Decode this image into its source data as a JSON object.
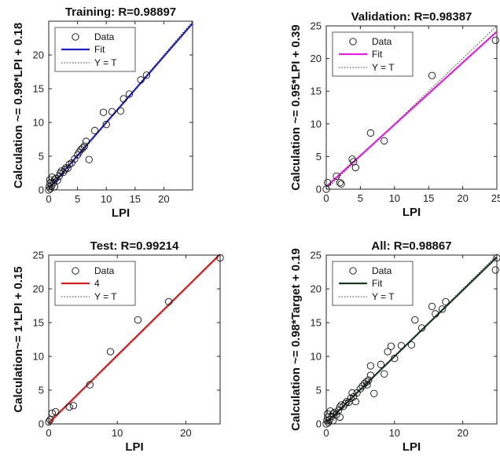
{
  "chart_data": [
    {
      "type": "scatter",
      "title": "Training: R=0.98897",
      "xlabel": "LPI",
      "ylabel": "Calculation ~= 0.98*LPI + 0.18",
      "xlim": [
        0,
        25
      ],
      "ylim": [
        0,
        25
      ],
      "xticks": [
        0,
        5,
        10,
        15,
        20
      ],
      "yticks": [
        0,
        5,
        10,
        15,
        20
      ],
      "grid": false,
      "legend_position": "top-left",
      "fit": {
        "slope": 0.98,
        "intercept": 0.18
      },
      "fit_color": "#1f1fbf",
      "series": [
        {
          "name": "Data",
          "x": [
            0,
            0.1,
            0.2,
            0.3,
            0.5,
            0.8,
            1.0,
            1.2,
            1.5,
            1.8,
            2.0,
            2.2,
            2.5,
            2.8,
            3.0,
            3.3,
            3.6,
            4.0,
            4.5,
            5.0,
            5.3,
            5.6,
            5.9,
            6.2,
            6.5,
            7.0,
            8.0,
            9.5,
            10.0,
            11.0,
            12.5,
            13.0,
            14.0,
            16.0,
            17.0,
            0.2,
            0.6,
            1.0
          ],
          "y": [
            0,
            0.5,
            1.0,
            0.2,
            0.6,
            1.1,
            1.5,
            1.7,
            1.4,
            2.0,
            2.5,
            2.8,
            2.6,
            3.0,
            3.3,
            3.2,
            3.8,
            4.0,
            4.6,
            5.2,
            5.6,
            6.0,
            6.2,
            6.5,
            7.2,
            4.5,
            8.8,
            11.5,
            9.7,
            11.6,
            11.7,
            13.5,
            14.2,
            16.3,
            17.0,
            1.5,
            1.9,
            0.5
          ]
        },
        {
          "name": "Fit"
        },
        {
          "name": "Y = T"
        }
      ]
    },
    {
      "type": "scatter",
      "title": "Validation: R=0.98387",
      "xlabel": "LPI",
      "ylabel": "Calculation ~= 0.95*LPI + 0.39",
      "xlim": [
        0,
        25
      ],
      "ylim": [
        0,
        25
      ],
      "xticks": [
        0,
        5,
        10,
        15,
        20,
        25
      ],
      "yticks": [
        0,
        5,
        10,
        15,
        20,
        25
      ],
      "grid": false,
      "legend_position": "top-left",
      "fit": {
        "slope": 0.95,
        "intercept": 0.39
      },
      "fit_color": "#dd22dd",
      "series": [
        {
          "name": "Data",
          "x": [
            0,
            0.2,
            1.5,
            2.0,
            2.2,
            3.8,
            4.0,
            4.3,
            6.5,
            8.5,
            15.5,
            24.8
          ],
          "y": [
            0,
            1.0,
            2.0,
            1.0,
            0.8,
            4.6,
            4.2,
            3.3,
            8.6,
            7.4,
            17.4,
            22.8
          ]
        },
        {
          "name": "Fit"
        },
        {
          "name": "Y = T"
        }
      ]
    },
    {
      "type": "scatter",
      "title": "Test: R=0.99214",
      "xlabel": "LPI",
      "ylabel": "Calculation~= 1*LPI + 0.15",
      "xlim": [
        0,
        25
      ],
      "ylim": [
        0,
        25
      ],
      "xticks": [
        0,
        10,
        20
      ],
      "yticks": [
        0,
        5,
        10,
        15,
        20,
        25
      ],
      "grid": false,
      "legend_position": "top-left",
      "fit": {
        "slope": 1.0,
        "intercept": 0.15
      },
      "fit_color": "#d42020",
      "series": [
        {
          "name": "Data",
          "x": [
            0,
            0.2,
            0.5,
            1.0,
            3.0,
            3.6,
            6.0,
            9.0,
            13.0,
            17.5,
            25.0
          ],
          "y": [
            0.3,
            0.6,
            1.6,
            1.8,
            2.5,
            2.7,
            5.8,
            10.7,
            15.4,
            18.1,
            24.6
          ]
        },
        {
          "name": "4"
        },
        {
          "name": "Y = T"
        }
      ]
    },
    {
      "type": "scatter",
      "title": "All: R=0.98867",
      "xlabel": "LPI",
      "ylabel": "Calculation ~= 0.98*Target + 0.19",
      "xlim": [
        0,
        25
      ],
      "ylim": [
        0,
        25
      ],
      "xticks": [
        0,
        10,
        20
      ],
      "yticks": [
        0,
        5,
        10,
        15,
        20,
        25
      ],
      "grid": false,
      "legend_position": "top-left",
      "fit": {
        "slope": 0.98,
        "intercept": 0.19
      },
      "fit_color": "#1b3a24",
      "series": [
        {
          "name": "Data",
          "x": [
            0,
            0.1,
            0.2,
            0.3,
            0.5,
            0.8,
            1.0,
            1.2,
            1.5,
            1.8,
            2.0,
            2.2,
            2.5,
            2.8,
            3.0,
            3.3,
            3.6,
            4.0,
            4.3,
            4.5,
            5.0,
            5.3,
            5.6,
            5.9,
            6.0,
            6.2,
            6.5,
            7.0,
            8.0,
            8.5,
            9.0,
            9.5,
            10.0,
            11.0,
            12.5,
            13.0,
            14.0,
            15.5,
            16.0,
            17.0,
            17.5,
            24.8,
            25.0,
            0.2,
            0.6,
            1.0,
            2.0,
            3.8,
            6.5
          ],
          "y": [
            0,
            0.5,
            1.0,
            0.2,
            0.6,
            1.1,
            1.5,
            1.7,
            1.4,
            2.0,
            2.5,
            2.8,
            2.6,
            3.0,
            3.3,
            3.2,
            3.8,
            4.0,
            3.3,
            4.6,
            5.2,
            5.6,
            6.0,
            6.2,
            5.8,
            6.5,
            7.2,
            4.5,
            8.8,
            7.4,
            10.7,
            11.5,
            9.7,
            11.6,
            11.7,
            15.4,
            14.2,
            17.4,
            16.3,
            17.0,
            18.1,
            22.8,
            24.6,
            1.5,
            1.9,
            0.5,
            1.0,
            4.6,
            8.6
          ]
        },
        {
          "name": "Fit"
        },
        {
          "name": "Y = T"
        }
      ]
    }
  ]
}
